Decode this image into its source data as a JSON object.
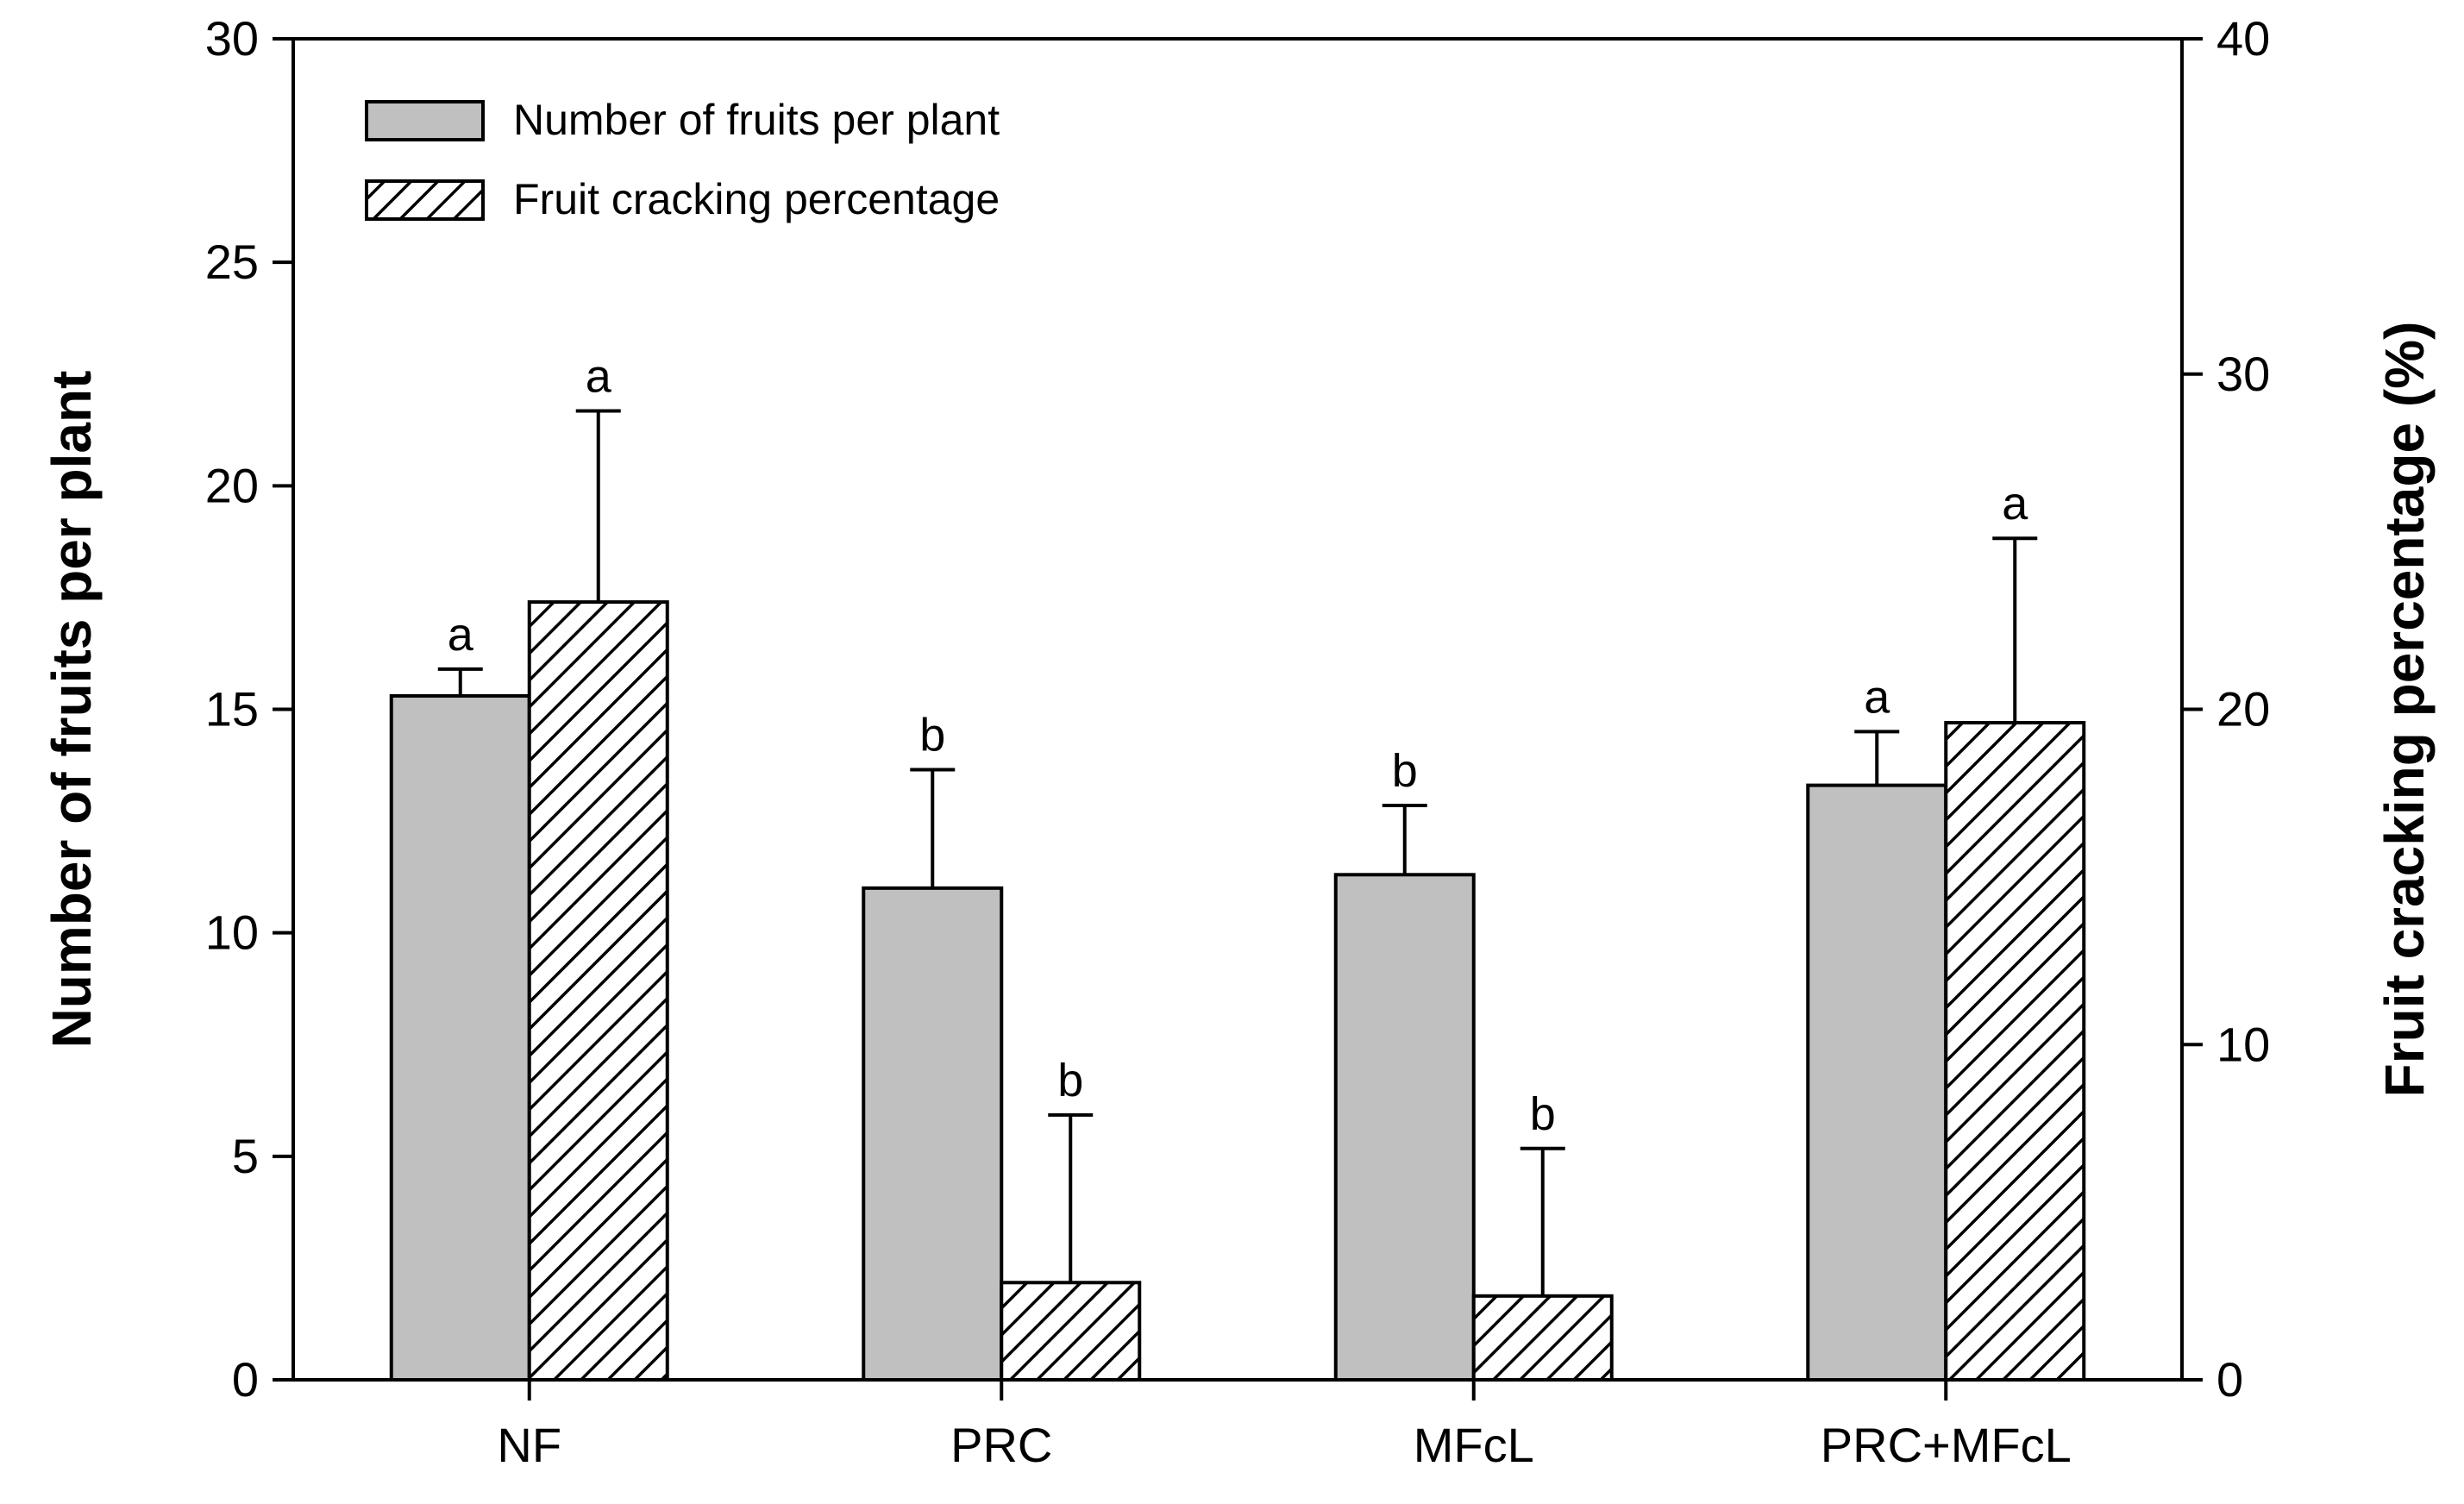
{
  "chart_data": {
    "type": "bar",
    "categories": [
      "NF",
      "PRC",
      "MFcL",
      "PRC+MFcL"
    ],
    "series": [
      {
        "name": "Number of fruits per plant",
        "axis": "left",
        "fill": "#c0c0c0",
        "pattern": "solid",
        "values": [
          15.3,
          11.0,
          11.3,
          13.3
        ],
        "error": [
          0.6,
          2.65,
          1.55,
          1.2
        ],
        "letters": [
          "a",
          "b",
          "b",
          "a"
        ]
      },
      {
        "name": "Fruit cracking percentage",
        "axis": "right",
        "fill": "#ffffff",
        "pattern": "diagonal-hatch",
        "values": [
          23.2,
          2.9,
          2.5,
          19.6
        ],
        "error": [
          5.7,
          5.0,
          4.4,
          5.5
        ],
        "letters": [
          "a",
          "b",
          "b",
          "a"
        ]
      }
    ],
    "ylabel": "Number of fruits per plant",
    "ylabel_right": "Fruit cracking percentage (%)",
    "ylim": [
      0,
      30
    ],
    "ylim_right": [
      0,
      40
    ],
    "yticks": [
      0,
      5,
      10,
      15,
      20,
      25,
      30
    ],
    "yticks_right": [
      0,
      10,
      20,
      30,
      40
    ],
    "grid": false,
    "legend_position": "top-left"
  }
}
